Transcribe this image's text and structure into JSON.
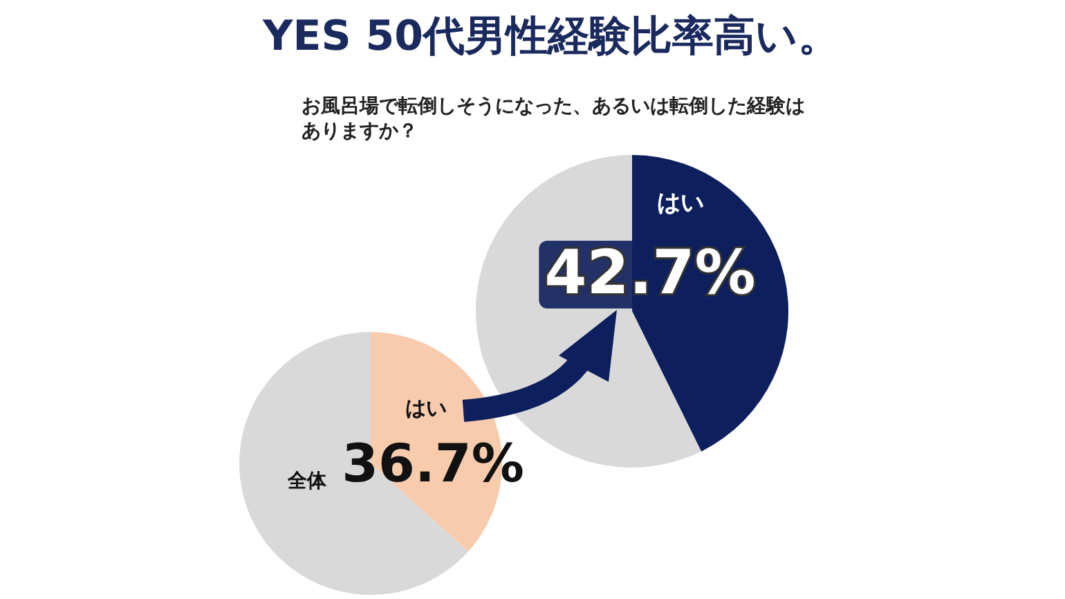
{
  "chart_data": [
    {
      "type": "pie",
      "title": "YES 50代男性経験比率高い。",
      "subtitle": "お風呂場で転倒しそうになった、あるいは転倒した経験はありますか？",
      "categories": [
        "はい",
        null
      ],
      "values": [
        42.7,
        57.3
      ],
      "colors": [
        "#0d1f5c",
        "#d9d9d9"
      ],
      "value_labels": [
        "42.7%",
        null
      ]
    },
    {
      "type": "pie",
      "title": "全体",
      "categories": [
        "はい",
        null
      ],
      "values": [
        36.7,
        63.3
      ],
      "colors": [
        "#f8cbad",
        "#d9d9d9"
      ],
      "value_labels": [
        "36.7%",
        null
      ]
    }
  ]
}
